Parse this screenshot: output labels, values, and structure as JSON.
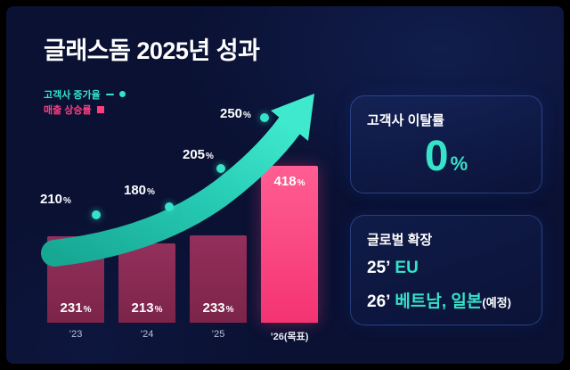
{
  "title": "글래스돔 2025년 성과",
  "legend": {
    "line_label": "고객사 증가율",
    "bar_label": "매출 상승률"
  },
  "colors": {
    "background": "#0a1133",
    "teal": "#35e3c9",
    "pink": "#ff3e7f",
    "bar_muted": "#8a2d55",
    "tick": "#b8c2da",
    "text": "#ffffff"
  },
  "chart_data": {
    "type": "bar",
    "categories": [
      "’23",
      "’24",
      "’25",
      "’26(목표)"
    ],
    "series": [
      {
        "name": "매출 상승률",
        "type": "bar",
        "unit": "%",
        "values": [
          231,
          213,
          233,
          418
        ]
      },
      {
        "name": "고객사 증가율",
        "type": "line",
        "unit": "%",
        "values": [
          210,
          180,
          205,
          250
        ]
      }
    ],
    "highlight_index": 3,
    "ylim": [
      0,
      450
    ],
    "grid": false,
    "legend_position": "top-left"
  },
  "cards": {
    "churn": {
      "title": "고객사 이탈률",
      "value": "0",
      "unit": "%"
    },
    "global": {
      "title": "글로벌 확장",
      "rows": [
        {
          "prefix": "25’",
          "value": "EU",
          "suffix": ""
        },
        {
          "prefix": "26’",
          "value": "베트남, 일본",
          "suffix": "(예정)"
        }
      ]
    }
  }
}
